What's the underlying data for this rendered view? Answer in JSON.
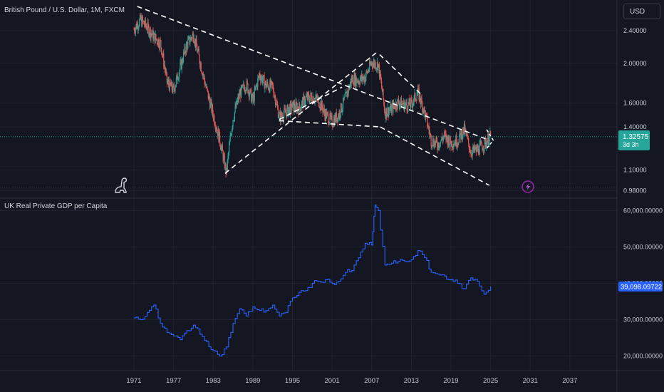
{
  "chart_data": [
    {
      "type": "candlestick",
      "title": "British Pound / U.S. Dollar, 1M, FXCM",
      "currency": "USD",
      "last_value": "1.32575",
      "countdown": "3d 3h",
      "y_scale": "log",
      "ylim": [
        0.94,
        2.85
      ],
      "y_ticks": [
        "2.40000",
        "2.00000",
        "1.60000",
        "1.40000",
        "1.10000",
        "0.98000"
      ],
      "up_color": "#26a69a",
      "down_color": "#ef5350",
      "x": [
        1971,
        1972,
        1973,
        1974,
        1975,
        1976,
        1977,
        1978,
        1979,
        1980,
        1981,
        1982,
        1983,
        1984,
        1985,
        1986,
        1987,
        1988,
        1989,
        1990,
        1991,
        1992,
        1993,
        1994,
        1995,
        1996,
        1997,
        1998,
        1999,
        2000,
        2001,
        2002,
        2003,
        2004,
        2005,
        2006,
        2007,
        2008,
        2009,
        2010,
        2011,
        2012,
        2013,
        2014,
        2015,
        2016,
        2017,
        2018,
        2019,
        2020,
        2021,
        2022,
        2023,
        2024,
        2025
      ],
      "values": [
        2.42,
        2.55,
        2.45,
        2.32,
        2.24,
        1.8,
        1.72,
        1.95,
        2.22,
        2.35,
        2.02,
        1.72,
        1.5,
        1.3,
        1.08,
        1.47,
        1.68,
        1.78,
        1.62,
        1.88,
        1.77,
        1.75,
        1.48,
        1.52,
        1.57,
        1.56,
        1.64,
        1.66,
        1.62,
        1.5,
        1.44,
        1.5,
        1.64,
        1.83,
        1.82,
        1.85,
        2.01,
        1.98,
        1.52,
        1.55,
        1.61,
        1.58,
        1.59,
        1.7,
        1.52,
        1.3,
        1.27,
        1.33,
        1.28,
        1.3,
        1.38,
        1.22,
        1.23,
        1.27,
        1.33
      ],
      "trend_lines": [
        {
          "from": [
            1971.5,
            2.75
          ],
          "to": [
            2024.8,
            1.3
          ]
        },
        {
          "from": [
            1984.8,
            1.08
          ],
          "to": [
            2008.0,
            2.14
          ]
        },
        {
          "from": [
            1993.0,
            1.45
          ],
          "to": [
            2008.5,
            1.4
          ]
        },
        {
          "from": [
            2008.3,
            1.4
          ],
          "to": [
            2024.8,
            1.01
          ]
        },
        {
          "from": [
            2008.2,
            2.1
          ],
          "to": [
            2014.5,
            1.68
          ]
        },
        {
          "from": [
            1993.0,
            1.46
          ],
          "to": [
            2002.5,
            1.75
          ]
        }
      ]
    },
    {
      "type": "line",
      "title": "UK Real Private GDP per Capita",
      "last_value": "39,098.09722",
      "ylim": [
        16000,
        63000
      ],
      "y_ticks": [
        "60,000.00000",
        "50,000.00000",
        "40,000.00000",
        "30,000.00000",
        "20,000.00000"
      ],
      "color": "#2962ff",
      "x": [
        1971,
        1972,
        1973,
        1974,
        1975,
        1976,
        1977,
        1978,
        1979,
        1980,
        1981,
        1982,
        1983,
        1984,
        1985,
        1986,
        1987,
        1988,
        1989,
        1990,
        1991,
        1992,
        1993,
        1994,
        1995,
        1996,
        1997,
        1998,
        1999,
        2000,
        2001,
        2002,
        2003,
        2004,
        2005,
        2006,
        2007,
        2007.5,
        2008,
        2009,
        2010,
        2011,
        2012,
        2013,
        2014,
        2015,
        2016,
        2017,
        2018,
        2019,
        2020,
        2021,
        2022,
        2023,
        2024,
        2025
      ],
      "values": [
        30500,
        30000,
        32000,
        34000,
        29000,
        26500,
        25500,
        24500,
        27000,
        28500,
        26000,
        24000,
        21500,
        20000,
        22500,
        29000,
        33000,
        31000,
        33500,
        32500,
        32500,
        34000,
        31000,
        32000,
        36000,
        37500,
        38000,
        40000,
        40500,
        41000,
        40000,
        40500,
        43000,
        43500,
        47000,
        51000,
        50500,
        61500,
        60000,
        45000,
        45500,
        46000,
        46000,
        46500,
        49000,
        47000,
        43000,
        42500,
        42000,
        41000,
        40000,
        38500,
        41500,
        40500,
        37000,
        39100
      ]
    }
  ],
  "x_axis_ticks": [
    "1971",
    "1977",
    "1983",
    "1989",
    "1995",
    "2001",
    "2007",
    "2013",
    "2019",
    "2025",
    "2031",
    "2037"
  ],
  "icon_names": [
    "dino-icon",
    "lightning-icon"
  ]
}
